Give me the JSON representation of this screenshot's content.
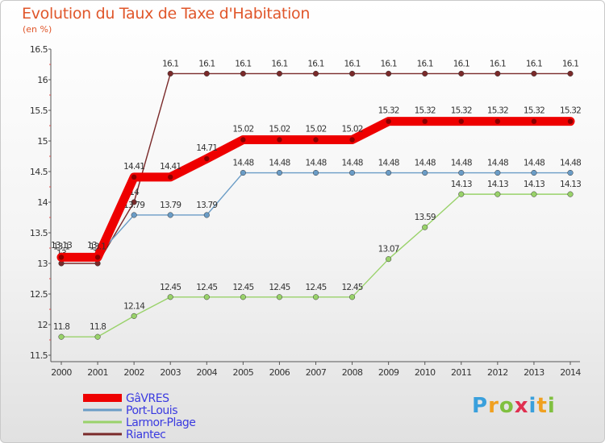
{
  "header": {
    "title": "Evolution du Taux de Taxe d'Habitation",
    "unit": "(en %)"
  },
  "logo": {
    "letters": [
      "P",
      "r",
      "o",
      "x",
      "i",
      "t",
      "i"
    ],
    "colors": [
      "#3aa0dc",
      "#f0a020",
      "#80c040",
      "#e03050",
      "#3aa0dc",
      "#f0a020",
      "#80c040"
    ]
  },
  "chart_data": {
    "type": "line",
    "title": "Evolution du Taux de Taxe d'Habitation",
    "ylabel": "(en %)",
    "xlabel": "",
    "x": [
      "2000",
      "2001",
      "2002",
      "2003",
      "2004",
      "2005",
      "2006",
      "2007",
      "2008",
      "2009",
      "2010",
      "2011",
      "2012",
      "2013",
      "2014"
    ],
    "ylim": [
      11.5,
      16.5
    ],
    "yticks": [
      "11.5",
      "12",
      "12.5",
      "13",
      "13.5",
      "14",
      "14.5",
      "15",
      "15.5",
      "16",
      "16.5"
    ],
    "grid": false,
    "legend_position": "bottom-left",
    "series": [
      {
        "name": "Riantec",
        "color": "#7a2a2a",
        "values": [
          13,
          13,
          14,
          16.1,
          16.1,
          16.1,
          16.1,
          16.1,
          16.1,
          16.1,
          16.1,
          16.1,
          16.1,
          16.1,
          16.1
        ],
        "labels": [
          "13",
          "13",
          "14",
          "16.1",
          "16.1",
          "16.1",
          "16.1",
          "16.1",
          "16.1",
          "16.1",
          "16.1",
          "16.1",
          "16.1",
          "16.1",
          "16.1"
        ]
      },
      {
        "name": "Larmor-Plage",
        "color": "#99d26a",
        "values": [
          11.8,
          11.8,
          12.14,
          12.45,
          12.45,
          12.45,
          12.45,
          12.45,
          12.45,
          13.07,
          13.59,
          14.13,
          14.13,
          14.13,
          14.13
        ],
        "labels": [
          "11.8",
          "11.8",
          "12.14",
          "12.45",
          "12.45",
          "12.45",
          "12.45",
          "12.45",
          "12.45",
          "13.07",
          "13.59",
          "14.13",
          "14.13",
          "14.13",
          "14.13"
        ]
      },
      {
        "name": "Port-Louis",
        "color": "#6a9cc6",
        "values": [
          13.13,
          13.13,
          13.79,
          13.79,
          13.79,
          14.48,
          14.48,
          14.48,
          14.48,
          14.48,
          14.48,
          14.48,
          14.48,
          14.48,
          14.48
        ],
        "labels": [
          "13.13",
          "13.13",
          "13.79",
          "13.79",
          "13.79",
          "14.48",
          "14.48",
          "14.48",
          "14.48",
          "14.48",
          "14.48",
          "14.48",
          "14.48",
          "14.48",
          "14.48"
        ]
      },
      {
        "name": "GâVRES",
        "color": "#ee0000",
        "values": [
          13.1,
          13.1,
          14.41,
          14.41,
          14.71,
          15.02,
          15.02,
          15.02,
          15.02,
          15.32,
          15.32,
          15.32,
          15.32,
          15.32,
          15.32
        ],
        "labels": [
          "13.1",
          "13.1",
          "14.41",
          "14.41",
          "14.71",
          "15.02",
          "15.02",
          "15.02",
          "15.02",
          "15.32",
          "15.32",
          "15.32",
          "15.32",
          "15.32",
          "15.32"
        ]
      }
    ],
    "legend_order": [
      "GâVRES",
      "Port-Louis",
      "Larmor-Plage",
      "Riantec"
    ]
  }
}
